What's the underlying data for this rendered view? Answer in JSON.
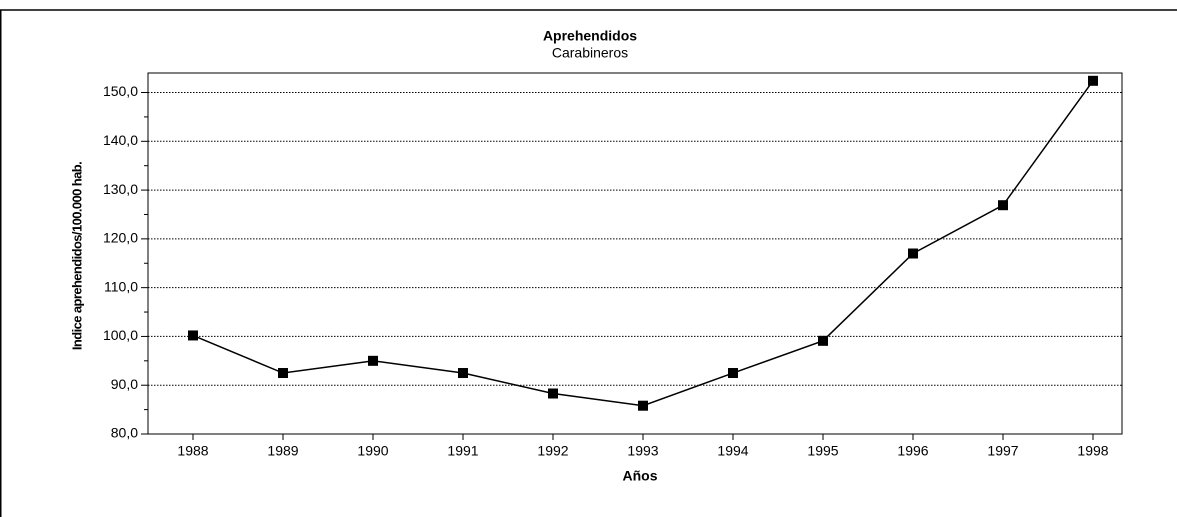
{
  "chart_data": {
    "type": "line",
    "title": "Aprehendidos",
    "subtitle": "Carabineros",
    "x_label": "Años",
    "y_label": "Indice aprehendidos/100.000 hab.",
    "categories": [
      "1988",
      "1989",
      "1990",
      "1991",
      "1992",
      "1993",
      "1994",
      "1995",
      "1996",
      "1997",
      "1998"
    ],
    "series": [
      {
        "name": "Aprehendidos",
        "color": "#000000",
        "values": [
          100.2,
          92.5,
          95.0,
          92.5,
          88.3,
          85.8,
          92.5,
          99.1,
          117.0,
          126.9,
          152.4
        ]
      }
    ],
    "ylim": [
      80,
      154
    ],
    "yticks": [
      {
        "value": 80,
        "label": "80,0"
      },
      {
        "value": 90,
        "label": "90,0"
      },
      {
        "value": 100,
        "label": "100,0"
      },
      {
        "value": 110,
        "label": "110,0"
      },
      {
        "value": 120,
        "label": "120,0"
      },
      {
        "value": 130,
        "label": "130,0"
      },
      {
        "value": 140,
        "label": "140,0"
      },
      {
        "value": 150,
        "label": "150,0"
      }
    ],
    "yticks_minor": [
      85,
      95,
      105,
      115,
      125,
      135,
      145
    ],
    "grid": true
  }
}
